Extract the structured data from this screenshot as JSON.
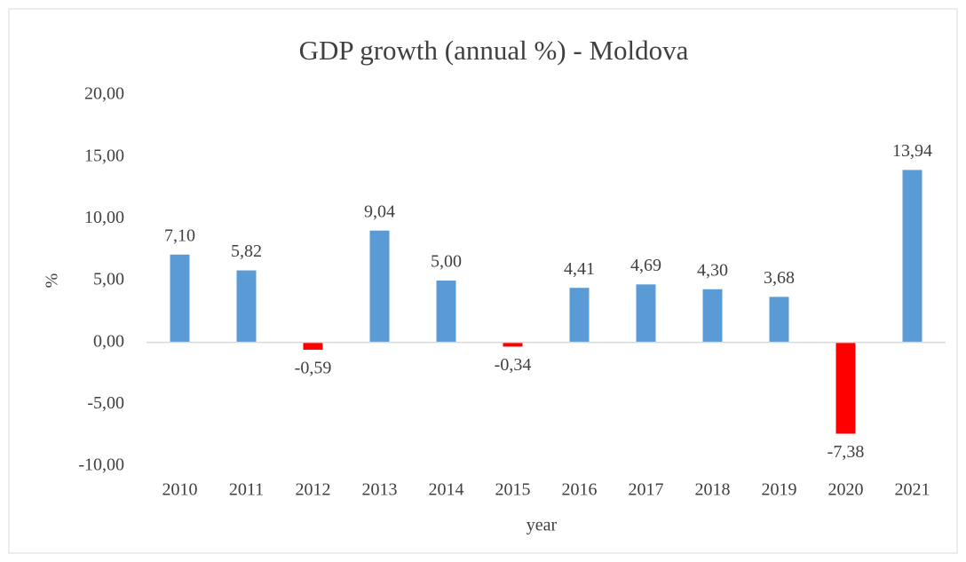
{
  "chart_data": {
    "type": "bar",
    "title": "GDP growth (annual %) - Moldova",
    "x_label": "year",
    "y_label": "%",
    "categories": [
      "2010",
      "2011",
      "2012",
      "2013",
      "2014",
      "2015",
      "2016",
      "2017",
      "2018",
      "2019",
      "2020",
      "2021"
    ],
    "values": [
      7.1,
      5.82,
      -0.59,
      9.04,
      5.0,
      -0.34,
      4.41,
      4.69,
      4.3,
      3.68,
      -7.38,
      13.94
    ],
    "value_labels": [
      "7,10",
      "5,82",
      "-0,59",
      "9,04",
      "5,00",
      "-0,34",
      "4,41",
      "4,69",
      "4,30",
      "3,68",
      "-7,38",
      "13,94"
    ],
    "colors": [
      "#5b9bd5",
      "#5b9bd5",
      "#ff0000",
      "#5b9bd5",
      "#5b9bd5",
      "#ff0000",
      "#5b9bd5",
      "#5b9bd5",
      "#5b9bd5",
      "#5b9bd5",
      "#ff0000",
      "#5b9bd5"
    ],
    "ylim": [
      -10,
      20
    ],
    "yticks": [
      {
        "value": -10,
        "label": "-10,00"
      },
      {
        "value": -5,
        "label": "-5,00"
      },
      {
        "value": 0,
        "label": "0,00"
      },
      {
        "value": 5,
        "label": "5,00"
      },
      {
        "value": 10,
        "label": "10,00"
      },
      {
        "value": 15,
        "label": "15,00"
      },
      {
        "value": 20,
        "label": "20,00"
      }
    ],
    "grid": false
  }
}
